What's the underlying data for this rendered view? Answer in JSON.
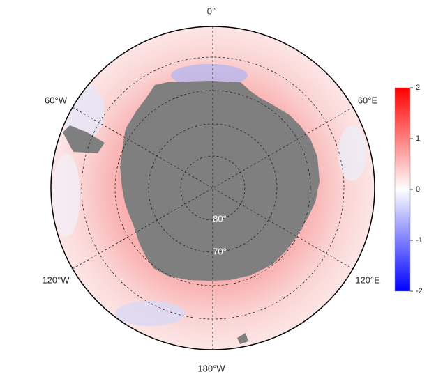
{
  "map": {
    "meridian_labels": [
      "0°",
      "60°E",
      "120°E",
      "180°W",
      "120°W",
      "60°W"
    ],
    "latitude_labels": [
      "80°",
      "70°"
    ],
    "colorbar": {
      "min": -2,
      "max": 2,
      "ticks": [
        2,
        1,
        0,
        -1,
        -2
      ]
    }
  }
}
